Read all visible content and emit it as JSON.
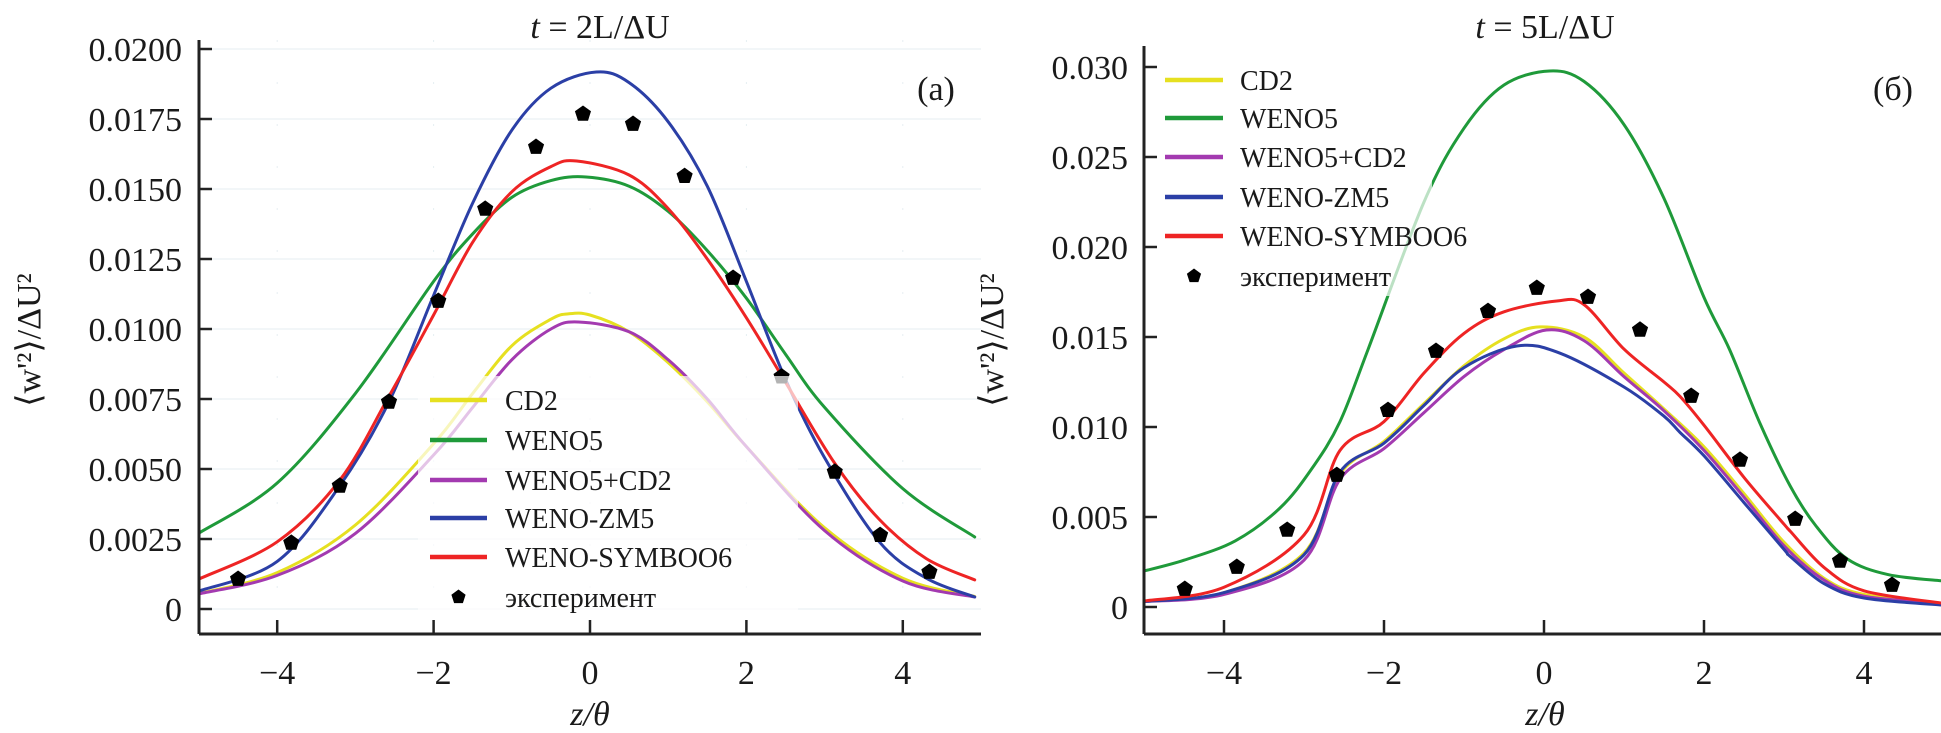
{
  "figure": {
    "colors": {
      "CD2": "#e6e020",
      "WENO5": "#1f9a3a",
      "WENO5+CD2": "#a33ab0",
      "WENO-ZM5": "#2b3fa6",
      "WENO-SYMBOO6": "#ee2424",
      "experiment": "#000000"
    }
  },
  "chart_data": [
    {
      "type": "line",
      "panel_tag": "(a)",
      "title": "t = 2L/ΔU",
      "title_italic": "t",
      "title_rest": " = 2L/ΔU",
      "xlabel": "z/θ",
      "ylabel": "⟨w'²⟩/ΔU²",
      "xlim": [
        -5,
        5
      ],
      "ylim": [
        -0.0008,
        0.0202
      ],
      "xticks": [
        -4,
        -2,
        0,
        2,
        4
      ],
      "xtick_labels": [
        "−4",
        "−2",
        "0",
        "2",
        "4"
      ],
      "yticks": [
        0,
        0.0025,
        0.005,
        0.0075,
        0.01,
        0.0125,
        0.015,
        0.0175,
        0.02
      ],
      "ytick_labels": [
        "0",
        "0.0025",
        "0.0050",
        "0.0075",
        "0.0100",
        "0.0125",
        "0.0150",
        "0.0175",
        "0.0200"
      ],
      "grid": true,
      "legend_position": "lower-center",
      "legend": [
        "CD2",
        "WENO5",
        "WENO5+CD2",
        "WENO-ZM5",
        "WENO-SYMBOO6",
        "эксперимент"
      ],
      "series": [
        {
          "name": "CD2",
          "x": [
            -5,
            -4,
            -3,
            -2,
            -1.5,
            -1,
            -0.5,
            -0.28,
            0,
            0.5,
            1,
            1.5,
            2,
            3,
            4,
            4.92
          ],
          "y": [
            0.00055,
            0.0013,
            0.003,
            0.0059,
            0.0077,
            0.0094,
            0.01035,
            0.01054,
            0.0105,
            0.0099,
            0.0088,
            0.0074,
            0.0058,
            0.0029,
            0.0011,
            0.00045
          ]
        },
        {
          "name": "WENO5",
          "x": [
            -5,
            -4,
            -3,
            -2,
            -1.5,
            -1,
            -0.5,
            -0.05,
            0.5,
            1,
            1.5,
            2,
            2.5,
            3,
            4,
            4.92
          ],
          "y": [
            0.00271,
            0.0045,
            0.0077,
            0.0117,
            0.0134,
            0.0147,
            0.0153,
            0.01543,
            0.0151,
            0.0142,
            0.0128,
            0.0111,
            0.0091,
            0.0072,
            0.0043,
            0.00257
          ]
        },
        {
          "name": "WENO5+CD2",
          "x": [
            -5,
            -4,
            -3,
            -2,
            -1.5,
            -1,
            -0.5,
            -0.15,
            0.5,
            1,
            1.5,
            2,
            3,
            4,
            4.92
          ],
          "y": [
            0.00054,
            0.0012,
            0.0027,
            0.0055,
            0.0072,
            0.0089,
            0.01,
            0.01025,
            0.0099,
            0.0089,
            0.0075,
            0.0058,
            0.0028,
            0.001,
            0.00043
          ]
        },
        {
          "name": "WENO-ZM5",
          "x": [
            -5,
            -4,
            -3.2,
            -2.57,
            -2,
            -1.5,
            -1,
            -0.5,
            0.08,
            0.5,
            1,
            1.5,
            2,
            2.5,
            3,
            3.7,
            4.3,
            4.92
          ],
          "y": [
            0.00064,
            0.0017,
            0.0044,
            0.0074,
            0.0112,
            0.0145,
            0.0171,
            0.0186,
            0.01918,
            0.0188,
            0.0174,
            0.0151,
            0.0117,
            0.0082,
            0.0054,
            0.0024,
            0.0011,
            0.00043
          ]
        },
        {
          "name": "WENO-SYMBOO6",
          "x": [
            -5,
            -4,
            -3.2,
            -2.57,
            -2,
            -1.5,
            -1,
            -0.5,
            -0.17,
            0.5,
            1,
            1.5,
            2,
            2.5,
            3.13,
            3.7,
            4.3,
            4.92
          ],
          "y": [
            0.00107,
            0.0024,
            0.0046,
            0.0076,
            0.0105,
            0.0131,
            0.0149,
            0.0158,
            0.016,
            0.0155,
            0.0143,
            0.0125,
            0.0104,
            0.0081,
            0.0052,
            0.0032,
            0.0018,
            0.00104
          ]
        },
        {
          "name": "эксперимент",
          "marker": "pentagon",
          "x": [
            -4.5,
            -3.82,
            -3.2,
            -2.57,
            -1.94,
            -1.34,
            -0.69,
            -0.09,
            0.55,
            1.21,
            1.83,
            2.45,
            3.13,
            3.71,
            4.34
          ],
          "y": [
            0.00107,
            0.00236,
            0.0044,
            0.0074,
            0.011,
            0.01429,
            0.0165,
            0.01768,
            0.01732,
            0.01546,
            0.01182,
            0.0083,
            0.0049,
            0.00264,
            0.00132
          ]
        }
      ]
    },
    {
      "type": "line",
      "panel_tag": "(б)",
      "title": "t = 5L/ΔU",
      "title_italic": "t",
      "title_rest": " = 5L/ΔU",
      "xlabel": "z/θ",
      "ylabel": "⟨w'²⟩/ΔU²",
      "xlim": [
        -5,
        5
      ],
      "ylim": [
        -0.0014,
        0.0312
      ],
      "xticks": [
        -4,
        -2,
        0,
        2,
        4
      ],
      "xtick_labels": [
        "−4",
        "−2",
        "0",
        "2",
        "4"
      ],
      "yticks": [
        0,
        0.005,
        0.01,
        0.015,
        0.02,
        0.025,
        0.03
      ],
      "ytick_labels": [
        "0",
        "0.005",
        "0.010",
        "0.015",
        "0.020",
        "0.025",
        "0.030"
      ],
      "grid": false,
      "legend_position": "top-left",
      "legend": [
        "CD2",
        "WENO5",
        "WENO5+CD2",
        "WENO-ZM5",
        "WENO-SYMBOO6",
        "эксперимент"
      ],
      "series": [
        {
          "name": "CD2",
          "x": [
            -5,
            -4,
            -3,
            -2.55,
            -2,
            -1.5,
            -1,
            -0.5,
            -0.05,
            0.5,
            1,
            1.5,
            2,
            2.5,
            3,
            3.5,
            4,
            5
          ],
          "y": [
            0.0003,
            0.0008,
            0.003,
            0.0074,
            0.0092,
            0.0113,
            0.0134,
            0.0149,
            0.01556,
            0.015,
            0.013,
            0.011,
            0.0089,
            0.0063,
            0.0036,
            0.0016,
            0.0007,
            0.0002
          ]
        },
        {
          "name": "WENO5",
          "x": [
            -5,
            -4.5,
            -3.86,
            -3.3,
            -2.9,
            -2.55,
            -2.2,
            -1.5,
            -1,
            -0.5,
            0.07,
            0.5,
            1,
            1.5,
            2,
            2.32,
            2.7,
            3.08,
            3.4,
            3.79,
            4.3,
            5
          ],
          "y": [
            0.002,
            0.0026,
            0.00367,
            0.0055,
            0.0077,
            0.0103,
            0.0143,
            0.0225,
            0.0266,
            0.029,
            0.02978,
            0.0292,
            0.0268,
            0.0227,
            0.0172,
            0.0143,
            0.0102,
            0.0067,
            0.0045,
            0.00267,
            0.0018,
            0.00144
          ]
        },
        {
          "name": "WENO5+CD2",
          "x": [
            -5,
            -4,
            -3,
            -2.55,
            -2,
            -1.5,
            -1,
            -0.5,
            0.03,
            0.5,
            1,
            1.5,
            2,
            2.5,
            3,
            3.5,
            4,
            5
          ],
          "y": [
            0.0003,
            0.0007,
            0.0026,
            0.0071,
            0.0088,
            0.0108,
            0.0128,
            0.0143,
            0.01539,
            0.0148,
            0.0128,
            0.0109,
            0.0087,
            0.0061,
            0.0034,
            0.0015,
            0.0006,
            0.0002
          ]
        },
        {
          "name": "WENO-ZM5",
          "x": [
            -5,
            -4,
            -3,
            -2.55,
            -2,
            -1.5,
            -1,
            -0.34,
            0.2,
            1,
            1.5,
            1.7,
            2,
            2.5,
            3,
            3.08,
            3.5,
            4,
            5
          ],
          "y": [
            0.0003,
            0.0008,
            0.0029,
            0.0075,
            0.0091,
            0.0112,
            0.0133,
            0.0145,
            0.0141,
            0.01222,
            0.0106,
            0.0097,
            0.0084,
            0.0058,
            0.0032,
            0.0028,
            0.0013,
            0.0005,
            0.0001
          ]
        },
        {
          "name": "WENO-SYMBOO6",
          "x": [
            -5,
            -4,
            -3,
            -2.55,
            -2,
            -1.5,
            -1,
            -0.5,
            0.16,
            0.5,
            1,
            1.5,
            1.7,
            2,
            2.5,
            3,
            3.08,
            3.5,
            4,
            5
          ],
          "y": [
            0.00033,
            0.0011,
            0.004,
            0.0087,
            0.0103,
            0.013,
            0.0152,
            0.0164,
            0.017,
            0.0168,
            0.01433,
            0.0125,
            0.0117,
            0.0101,
            0.0072,
            0.0046,
            0.0042,
            0.0022,
            0.0009,
            0.0002
          ]
        },
        {
          "name": "эксперимент",
          "marker": "pentagon",
          "x": [
            -4.49,
            -3.84,
            -3.21,
            -2.59,
            -1.95,
            -1.35,
            -0.7,
            -0.09,
            0.55,
            1.2,
            1.84,
            2.45,
            3.14,
            3.7,
            4.35
          ],
          "y": [
            0.001,
            0.00222,
            0.00428,
            0.00733,
            0.01094,
            0.01422,
            0.01644,
            0.01772,
            0.01722,
            0.0154,
            0.01172,
            0.00817,
            0.00489,
            0.00256,
            0.00122
          ]
        }
      ]
    }
  ]
}
